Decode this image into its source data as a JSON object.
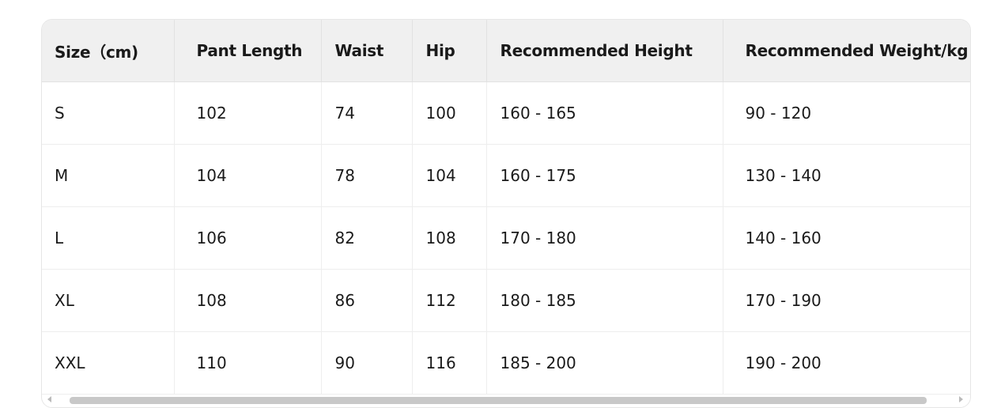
{
  "table": {
    "headers": [
      "Size（cm)",
      "Pant Length",
      "Waist",
      "Hip",
      "Recommended Height",
      "Recommended Weight/kg"
    ],
    "rows": [
      [
        "S",
        "102",
        "74",
        "100",
        "160 - 165",
        "90 - 120"
      ],
      [
        "M",
        "104",
        "78",
        "104",
        "160 - 175",
        "130 - 140"
      ],
      [
        "L",
        "106",
        "82",
        "108",
        "170 - 180",
        "140 - 160"
      ],
      [
        "XL",
        "108",
        "86",
        "112",
        "180 - 185",
        "170 - 190"
      ],
      [
        "XXL",
        "110",
        "90",
        "116",
        "185 - 200",
        "190 - 200"
      ]
    ]
  }
}
